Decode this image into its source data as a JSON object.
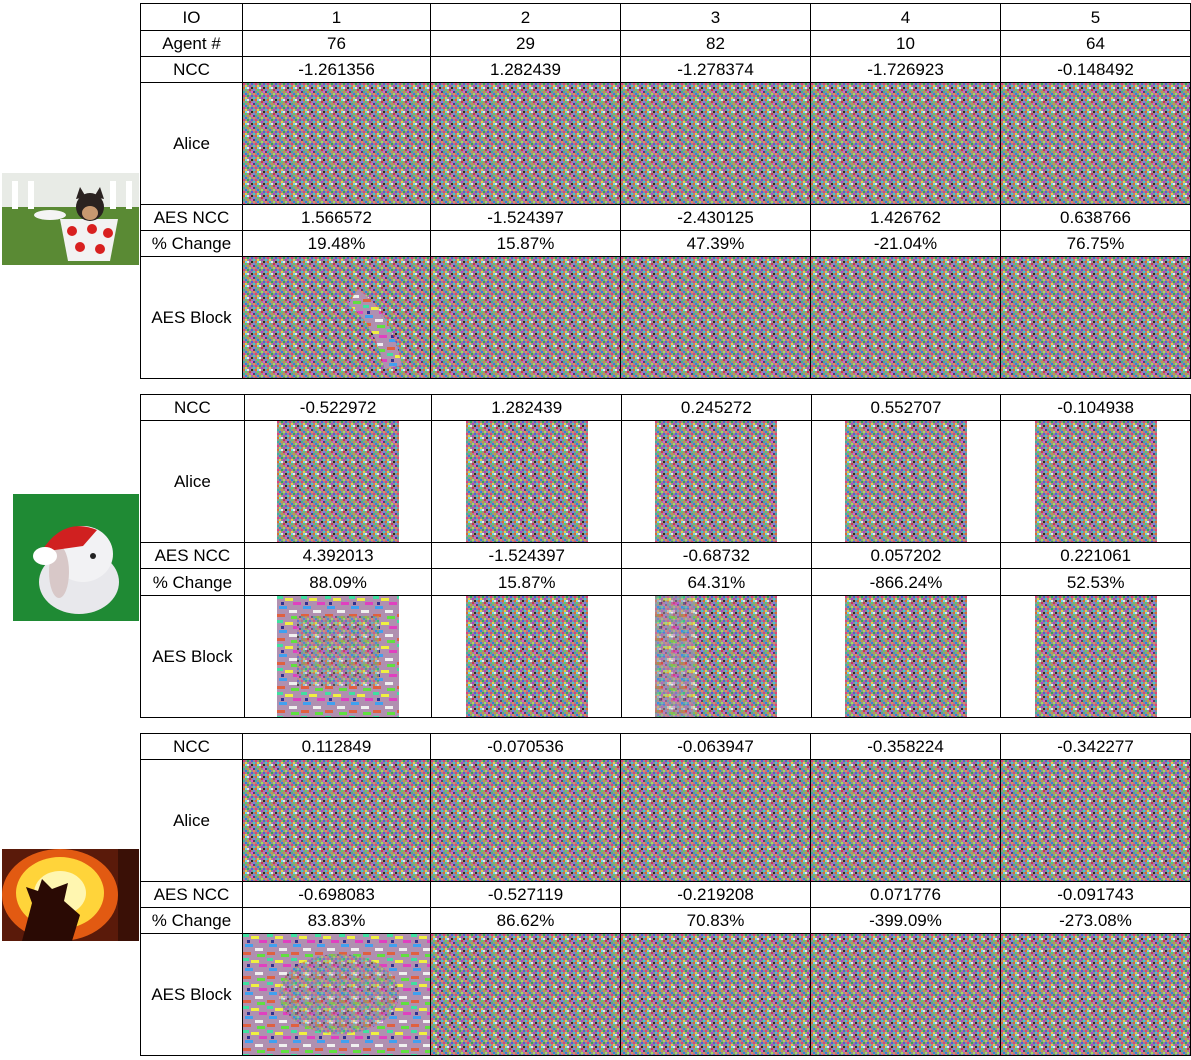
{
  "header": {
    "io_label": "IO",
    "io_values": [
      "1",
      "2",
      "3",
      "4",
      "5"
    ],
    "agent_label": "Agent #",
    "agent_values": [
      "76",
      "29",
      "82",
      "10",
      "64"
    ]
  },
  "row_labels": {
    "ncc": "NCC",
    "alice": "Alice",
    "aes_ncc": "AES NCC",
    "change": "% Change",
    "aes_block": "AES Block"
  },
  "blocks": [
    {
      "subject": "puppy-in-teacup",
      "ncc": [
        "-1.261356",
        "1.282439",
        "-1.278374",
        "-1.726923",
        "-0.148492"
      ],
      "aes_ncc": [
        "1.566572",
        "-1.524397",
        "-2.430125",
        "1.426762",
        "0.638766"
      ],
      "change": [
        "19.48%",
        "15.87%",
        "47.39%",
        "-21.04%",
        "76.75%"
      ]
    },
    {
      "subject": "bunny-with-santa-hat",
      "ncc": [
        "-0.522972",
        "1.282439",
        "0.245272",
        "0.552707",
        "-0.104938"
      ],
      "aes_ncc": [
        "4.392013",
        "-1.524397",
        "-0.68732",
        "0.057202",
        "0.221061"
      ],
      "change": [
        "88.09%",
        "15.87%",
        "64.31%",
        "-866.24%",
        "52.53%"
      ]
    },
    {
      "subject": "carved-pumpkin-wolf",
      "ncc": [
        "0.112849",
        "-0.070536",
        "-0.063947",
        "-0.358224",
        "-0.342277"
      ],
      "aes_ncc": [
        "-0.698083",
        "-0.527119",
        "-0.219208",
        "0.071776",
        "-0.091743"
      ],
      "change": [
        "83.83%",
        "86.62%",
        "70.83%",
        "-399.09%",
        "-273.08%"
      ]
    }
  ]
}
